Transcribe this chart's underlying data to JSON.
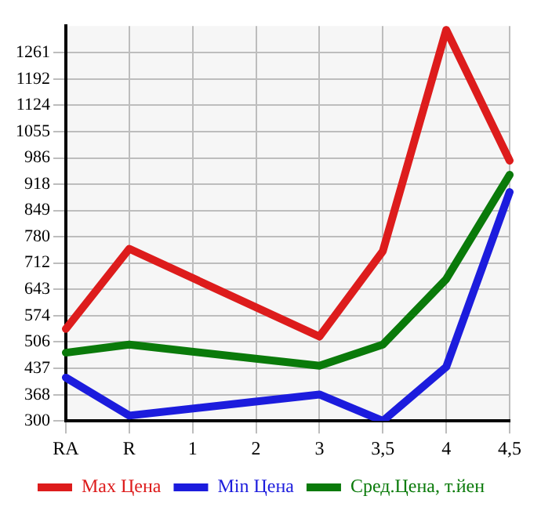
{
  "chart_data": {
    "type": "line",
    "categories": [
      "RA",
      "R",
      "1",
      "2",
      "3",
      "3,5",
      "4",
      "4,5"
    ],
    "series": [
      {
        "name": "Max Цена",
        "color": "#dd1c1c",
        "values": [
          540,
          749,
          null,
          null,
          520,
          743,
          1320,
          979
        ]
      },
      {
        "name": "Min Цена",
        "color": "#1c1cdd",
        "values": [
          413,
          314,
          null,
          null,
          369,
          300,
          441,
          897
        ]
      },
      {
        "name": "Сред.Цена, т.йен",
        "color": "#0a7a0a",
        "values": [
          478,
          499,
          null,
          null,
          444,
          499,
          670,
          942
        ]
      }
    ],
    "ylim": [
      300,
      1330
    ],
    "yticks": [
      300,
      368,
      437,
      506,
      574,
      643,
      712,
      780,
      849,
      918,
      986,
      1055,
      1124,
      1192,
      1261
    ],
    "grid": true,
    "legend": "bottom",
    "marker": "none",
    "line_style": "solid"
  }
}
